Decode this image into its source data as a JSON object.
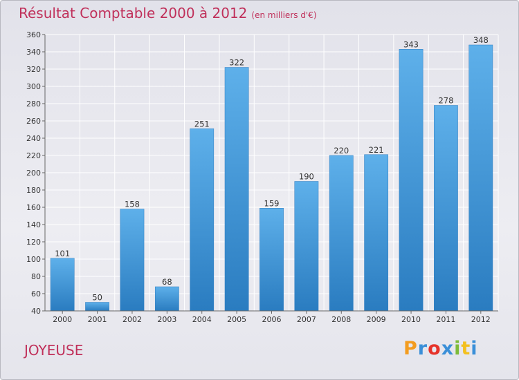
{
  "chart_data": {
    "type": "bar",
    "title": "Résultat Comptable 2000 à 2012",
    "subtitle": "(en milliers d'€)",
    "categories": [
      "2000",
      "2001",
      "2002",
      "2003",
      "2004",
      "2005",
      "2006",
      "2007",
      "2008",
      "2009",
      "2010",
      "2011",
      "2012"
    ],
    "values": [
      101,
      50,
      158,
      68,
      251,
      322,
      159,
      190,
      220,
      221,
      343,
      278,
      348
    ],
    "ylim": [
      40,
      360
    ],
    "yticks": [
      40,
      60,
      80,
      100,
      120,
      140,
      160,
      180,
      200,
      220,
      240,
      260,
      280,
      300,
      320,
      340,
      360
    ],
    "grid": true,
    "xlabel": "",
    "ylabel": "",
    "colors": {
      "bar_top": "#5eb0ea",
      "bar_bottom": "#2a7cc0",
      "title": "#c0305a"
    }
  },
  "place": "JOYEUSE",
  "logo": {
    "letters": [
      "P",
      "r",
      "o",
      "x",
      "i",
      "t",
      "i"
    ],
    "colors": [
      "#f39c1f",
      "#3a8fd8",
      "#e6332a",
      "#3a8fd8",
      "#7dbb3a",
      "#f3c01f",
      "#3a8fd8"
    ]
  }
}
